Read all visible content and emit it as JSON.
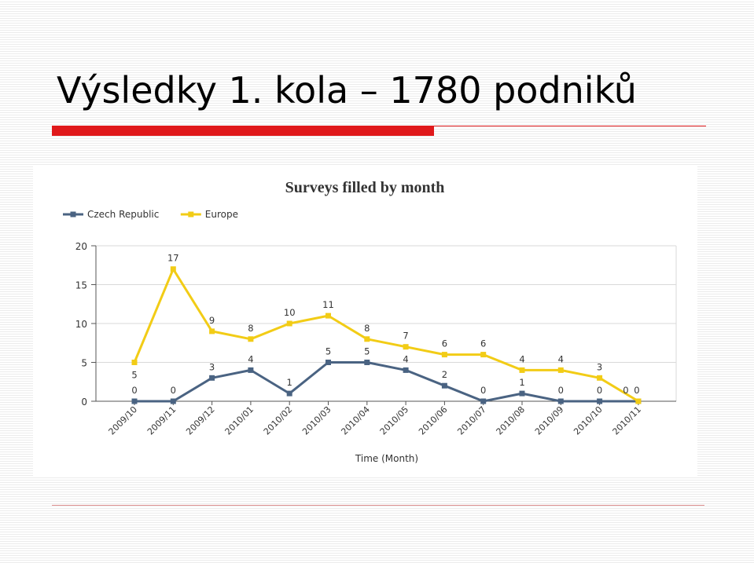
{
  "slide": {
    "title": "Výsledky 1. kola – 1780 podniků"
  },
  "chart_data": {
    "type": "line",
    "title": "Surveys filled by month",
    "xlabel": "Time (Month)",
    "ylabel": "",
    "categories": [
      "2009/10",
      "2009/11",
      "2009/12",
      "2010/01",
      "2010/02",
      "2010/03",
      "2010/04",
      "2010/05",
      "2010/06",
      "2010/07",
      "2010/08",
      "2010/09",
      "2010/10",
      "2010/11"
    ],
    "ylim": [
      0,
      20
    ],
    "yticks": [
      0,
      5,
      10,
      15,
      20
    ],
    "grid": true,
    "legend_position": "top-left",
    "series": [
      {
        "name": "Czech Republic",
        "color": "#4a6382",
        "values": [
          0,
          0,
          3,
          4,
          1,
          5,
          5,
          4,
          2,
          0,
          1,
          0,
          0,
          0
        ]
      },
      {
        "name": "Europe",
        "color": "#f2cc16",
        "values": [
          5,
          17,
          9,
          8,
          10,
          11,
          8,
          7,
          6,
          6,
          4,
          4,
          3,
          0
        ]
      }
    ]
  }
}
